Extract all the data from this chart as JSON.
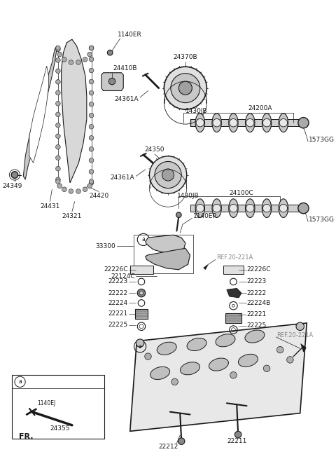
{
  "bg_color": "#ffffff",
  "line_color": "#1a1a1a",
  "label_color": "#1a1a1a",
  "ref_color": "#888888",
  "fig_width": 4.8,
  "fig_height": 6.55,
  "dpi": 100,
  "xlim": [
    0,
    480
  ],
  "ylim": [
    0,
    655
  ]
}
